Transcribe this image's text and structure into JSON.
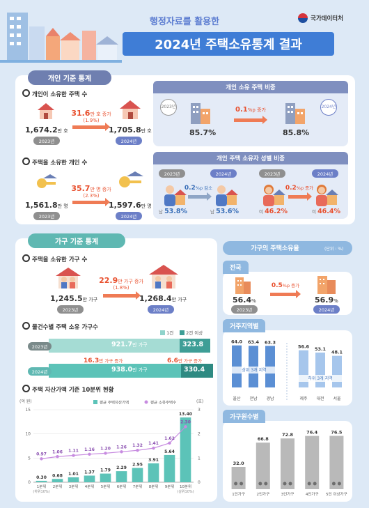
{
  "header": {
    "subtitle": "행정자료를 활용한",
    "title": "2024년 주택소유통계 결과",
    "org": "국가데이터처"
  },
  "personal": {
    "tab": "개인 기준 통계",
    "houses": {
      "label": "개인이 소유한 주택 수",
      "v2023": "1,674.2",
      "u2023": "만 호",
      "v2024": "1,705.8",
      "u2024": "만 호",
      "inc": "31.6",
      "inc_unit": "만 호 증가",
      "pct": "(1.9%)"
    },
    "owners": {
      "label": "주택을 소유한 개인 수",
      "v2023": "1,561.8",
      "u2023": "만 명",
      "v2024": "1,597.6",
      "u2024": "만 명",
      "inc": "35.7",
      "inc_unit": "만 명 증가",
      "pct": "(2.3%)"
    },
    "share": {
      "title": "개인 소유 주택 비중",
      "v2023": "85.7%",
      "v2024": "85.8%",
      "inc": "0.1",
      "inc_unit": "%p 증가"
    },
    "gender": {
      "title": "개인 주택 소유자 성별 비중",
      "male2023": "53.8%",
      "male2024": "53.6%",
      "male_label": "남",
      "male_chg": "0.2",
      "male_chg_unit": "%p 감소",
      "female2023": "46.2%",
      "female2024": "46.4%",
      "female_label": "여",
      "female_chg": "0.2",
      "female_chg_unit": "%p 증가"
    }
  },
  "years": {
    "y2023": "2023년",
    "y2024": "2024년"
  },
  "household": {
    "tab": "가구 기준 통계",
    "count": {
      "label": "주택을 소유한 가구 수",
      "v2023": "1,245.5",
      "u2023": "만 가구",
      "v2024": "1,268.4",
      "u2024": "만 가구",
      "inc": "22.9",
      "inc_unit": "만 가구 증가",
      "pct": "(1.8%)"
    },
    "by_count": {
      "label": "물건수별 주택 소유 가구수",
      "legend1": "1건",
      "legend2": "2건 이상",
      "one2023": "921.7",
      "multi2023": "323.8",
      "one2024": "938.0",
      "multi2024": "330.4",
      "unit": "만 가구",
      "one_inc": "16.3",
      "one_inc_unit": "만 가구 증가",
      "multi_inc": "6.6",
      "multi_inc_unit": "만 가구 증가"
    },
    "decile": {
      "label": "주택 자산가액 기준 10분위 현황",
      "y_left_unit": "(억 원)",
      "y_right_unit": "(호)",
      "legend_bar": "평균 주택자산가액",
      "legend_line": "평균 소유주택수",
      "sub_low": "(하위10%)",
      "sub_high": "(상위10%)"
    }
  },
  "rate": {
    "title": "가구의 주택소유율",
    "unit": "(단위 : %)",
    "national": "전국",
    "n2023": "56.4",
    "n2024": "56.9",
    "n_inc": "0.5",
    "n_inc_unit": "%p 증가",
    "region_tab": "거주지역별",
    "top3": "상위 3개 지역",
    "bottom3": "하위 3개 지역",
    "size_tab": "가구원수별"
  },
  "chart_data": [
    {
      "type": "bar",
      "title": "주택 자산가액 기준 10분위 현황",
      "categories": [
        "1분위",
        "2분위",
        "3분위",
        "4분위",
        "5분위",
        "6분위",
        "7분위",
        "8분위",
        "9분위",
        "10분위"
      ],
      "series": [
        {
          "name": "평균 주택자산가액",
          "values": [
            0.3,
            0.68,
            1.01,
            1.37,
            1.79,
            2.29,
            2.95,
            3.91,
            5.64,
            13.4
          ],
          "color": "#5cc3b8"
        },
        {
          "name": "평균 소유주택수",
          "type": "line",
          "values": [
            0.97,
            1.06,
            1.11,
            1.16,
            1.2,
            1.26,
            1.32,
            1.41,
            1.62,
            2.3
          ],
          "color": "#c78be0"
        }
      ],
      "ylabel": "(억 원)",
      "ylim": [
        0,
        15
      ],
      "yticks": [
        0,
        5,
        10,
        15
      ],
      "y2label": "(호)",
      "y2lim": [
        0,
        3
      ],
      "y2ticks": [
        0,
        1,
        2,
        3
      ]
    },
    {
      "type": "bar",
      "title": "거주지역별",
      "categories": [
        "울산",
        "전남",
        "경남",
        "제주",
        "대전",
        "서울"
      ],
      "values": [
        64.0,
        63.4,
        63.3,
        56.6,
        53.1,
        48.1
      ],
      "groups": [
        "상위 3개 지역",
        "상위 3개 지역",
        "상위 3개 지역",
        "하위 3개 지역",
        "하위 3개 지역",
        "하위 3개 지역"
      ],
      "colors": {
        "top": "#5b8fd4",
        "bottom": "#a6c6ec"
      }
    },
    {
      "type": "bar",
      "title": "가구원수별",
      "categories": [
        "1인가구",
        "2인가구",
        "3인가구",
        "4인가구",
        "5인 이상가구"
      ],
      "values": [
        32.0,
        66.8,
        72.8,
        76.4,
        76.5
      ],
      "color": "#b9b9b9"
    }
  ]
}
